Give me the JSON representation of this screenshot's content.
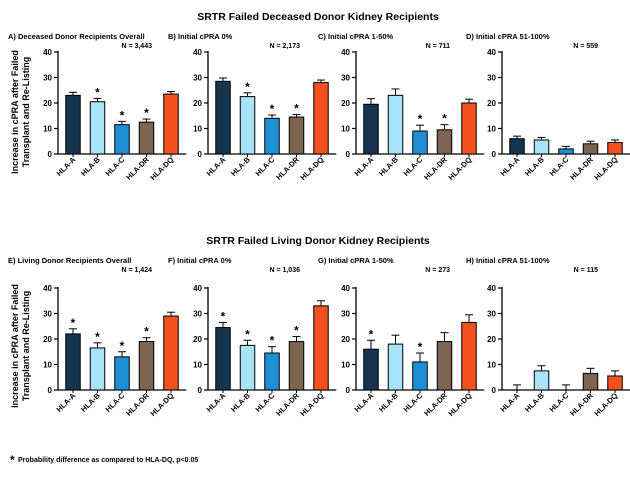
{
  "figure": {
    "section_titles": [
      "SRTR Failed Deceased Donor Kidney Recipients",
      "SRTR Failed Living Donor Kidney Recipients"
    ],
    "ylabel_lines": [
      "Increase in cPRA after Failed",
      "Transplant and Re-Listing"
    ],
    "footnote": "Probability difference as compared to HLA-DQ, p<0.05",
    "footnote_star": "*"
  },
  "colors": {
    "HLA-A": "#17344f",
    "HLA-B": "#a8e3f7",
    "HLA-C": "#1e8fd3",
    "HLA-DR": "#7b6450",
    "HLA-DQ": "#f2501e"
  },
  "chart_data": [
    {
      "type": "bar",
      "title": "A) Deceased Donor Recipients Overall",
      "n_label": "N = 3,443",
      "categories": [
        "HLA-A",
        "HLA-B",
        "HLA-C",
        "HLA-DR",
        "HLA-DQ"
      ],
      "values": [
        23,
        20.5,
        11.5,
        12.5,
        23.5
      ],
      "errors": [
        1.2,
        1.3,
        1.3,
        1.2,
        1.0
      ],
      "significant": [
        false,
        true,
        true,
        true,
        false
      ],
      "ylim": [
        0,
        40
      ],
      "yticks": [
        0,
        10,
        20,
        30,
        40
      ]
    },
    {
      "type": "bar",
      "title": "B) Initial cPRA 0%",
      "n_label": "N = 2,173",
      "categories": [
        "HLA-A",
        "HLA-B",
        "HLA-C",
        "HLA-DR",
        "HLA-DQ"
      ],
      "values": [
        28.5,
        22.5,
        14,
        14.5,
        28
      ],
      "errors": [
        1.3,
        1.5,
        1.3,
        1.0,
        1.0
      ],
      "significant": [
        false,
        true,
        true,
        true,
        false
      ],
      "ylim": [
        0,
        40
      ],
      "yticks": [
        0,
        10,
        20,
        30,
        40
      ]
    },
    {
      "type": "bar",
      "title": "C) Initial cPRA 1-50%",
      "n_label": "N = 711",
      "categories": [
        "HLA-A",
        "HLA-B",
        "HLA-C",
        "HLA-DR",
        "HLA-DQ"
      ],
      "values": [
        19.5,
        23,
        9,
        9.5,
        20
      ],
      "errors": [
        2.2,
        2.5,
        2.3,
        2.0,
        1.5
      ],
      "significant": [
        false,
        false,
        true,
        true,
        false
      ],
      "ylim": [
        0,
        40
      ],
      "yticks": [
        0,
        10,
        20,
        30,
        40
      ]
    },
    {
      "type": "bar",
      "title": "D) Initial cPRA 51-100%",
      "n_label": "N = 559",
      "categories": [
        "HLA-A",
        "HLA-B",
        "HLA-C",
        "HLA-DR",
        "HLA-DQ"
      ],
      "values": [
        6,
        5.5,
        2,
        4,
        4.5
      ],
      "errors": [
        1.0,
        1.0,
        1.0,
        1.0,
        1.0
      ],
      "significant": [
        false,
        false,
        false,
        false,
        false
      ],
      "ylim": [
        0,
        40
      ],
      "yticks": [
        0,
        10,
        20,
        30,
        40
      ]
    },
    {
      "type": "bar",
      "title": "E) Living Donor Recipients Overall",
      "n_label": "N = 1,424",
      "categories": [
        "HLA-A",
        "HLA-B",
        "HLA-C",
        "HLA-DR",
        "HLA-DQ"
      ],
      "values": [
        22,
        16.5,
        13,
        19,
        29
      ],
      "errors": [
        2.0,
        2.0,
        2.0,
        1.5,
        1.5
      ],
      "significant": [
        true,
        true,
        true,
        true,
        false
      ],
      "ylim": [
        0,
        40
      ],
      "yticks": [
        0,
        10,
        20,
        30,
        40
      ]
    },
    {
      "type": "bar",
      "title": "F) Initial cPRA 0%",
      "n_label": "N = 1,036",
      "categories": [
        "HLA-A",
        "HLA-B",
        "HLA-C",
        "HLA-DR",
        "HLA-DQ"
      ],
      "values": [
        24.5,
        17.5,
        14.5,
        19,
        33
      ],
      "errors": [
        2.0,
        2.0,
        2.5,
        2.0,
        2.0
      ],
      "significant": [
        true,
        true,
        true,
        true,
        false
      ],
      "ylim": [
        0,
        40
      ],
      "yticks": [
        0,
        10,
        20,
        30,
        40
      ]
    },
    {
      "type": "bar",
      "title": "G) Initial cPRA 1-50%",
      "n_label": "N = 273",
      "categories": [
        "HLA-A",
        "HLA-B",
        "HLA-C",
        "HLA-DR",
        "HLA-DQ"
      ],
      "values": [
        16,
        18,
        11,
        19,
        26.5
      ],
      "errors": [
        3.5,
        3.5,
        3.5,
        3.5,
        3.0
      ],
      "significant": [
        true,
        false,
        true,
        false,
        false
      ],
      "ylim": [
        0,
        40
      ],
      "yticks": [
        0,
        10,
        20,
        30,
        40
      ]
    },
    {
      "type": "bar",
      "title": "H) Initial cPRA 51-100%",
      "n_label": "N = 115",
      "categories": [
        "HLA-A",
        "HLA-B",
        "HLA-C",
        "HLA-DR",
        "HLA-DQ"
      ],
      "values": [
        0,
        7.5,
        0,
        6.5,
        5.5
      ],
      "errors": [
        2.0,
        2.0,
        2.0,
        2.0,
        2.0
      ],
      "significant": [
        false,
        false,
        false,
        false,
        false
      ],
      "ylim": [
        0,
        40
      ],
      "yticks": [
        0,
        10,
        20,
        30,
        40
      ]
    }
  ]
}
